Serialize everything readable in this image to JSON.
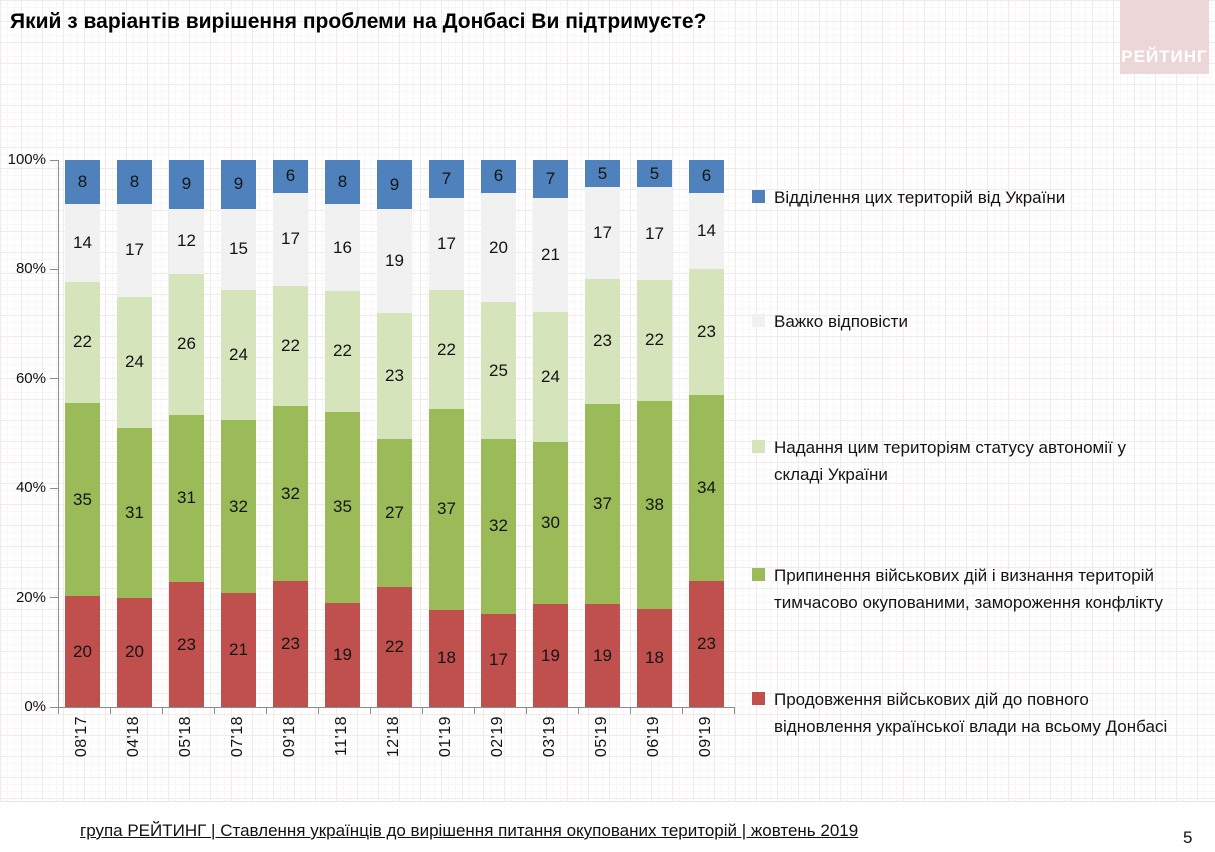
{
  "chart_data": {
    "type": "bar",
    "stacked": true,
    "title": "Який з варіантів вирішення проблеми на Донбасі Ви підтримуєте?",
    "categories": [
      "08'17",
      "04'18",
      "05'18",
      "07'18",
      "09'18",
      "11'18",
      "12'18",
      "01'19",
      "02'19",
      "03'19",
      "05'19",
      "06'19",
      "09'19"
    ],
    "series": [
      {
        "name": "Продовження військових дій до повного відновлення української влади на всьому Донбасі",
        "color": "#c0504d",
        "values": [
          20,
          20,
          23,
          21,
          23,
          19,
          22,
          18,
          17,
          19,
          19,
          18,
          23
        ]
      },
      {
        "name": "Припинення військових дій і визнання територій тимчасово окупованими, замороження конфлікту",
        "color": "#9bbb59",
        "values": [
          35,
          31,
          31,
          32,
          32,
          35,
          27,
          37,
          32,
          30,
          37,
          38,
          34
        ]
      },
      {
        "name": "Надання цим територіям статусу автономії у складі України",
        "color": "#d6e4bc",
        "values": [
          22,
          24,
          26,
          24,
          22,
          22,
          23,
          22,
          25,
          24,
          23,
          22,
          23
        ]
      },
      {
        "name": "Важко відповісти",
        "color": "#f1f1f1",
        "values": [
          14,
          17,
          12,
          15,
          17,
          16,
          19,
          17,
          20,
          21,
          17,
          17,
          14
        ]
      },
      {
        "name": "Відділення цих територій від України",
        "color": "#4f81bd",
        "values": [
          8,
          8,
          9,
          9,
          6,
          8,
          9,
          7,
          6,
          7,
          5,
          5,
          6
        ]
      }
    ],
    "xlabel": "",
    "ylabel": "",
    "ylim": [
      0,
      100
    ],
    "yticks": [
      "0%",
      "20%",
      "40%",
      "60%",
      "80%",
      "100%"
    ],
    "grid": false,
    "legend_position": "right"
  },
  "legend": {
    "items": [
      {
        "series_index": 4,
        "lines": [
          "Відділення цих територій від України"
        ]
      },
      {
        "series_index": 3,
        "lines": [
          "Важко відповісти"
        ]
      },
      {
        "series_index": 2,
        "lines": [
          "Надання цим територіям статусу автономії у",
          "складі України"
        ]
      },
      {
        "series_index": 1,
        "lines": [
          "Припинення військових дій і визнання територій",
          "тимчасово окупованими, замороження конфлікту"
        ]
      },
      {
        "series_index": 0,
        "lines": [
          "Продовження військових дій до повного",
          "відновлення української влади на всьому Донбасі"
        ]
      }
    ]
  },
  "logo": {
    "text": "РЕЙТИНГ",
    "bg": "#ebd7d7",
    "text_color": "#ffffff"
  },
  "footer": {
    "text": "група РЕЙТИНГ | Ставлення українців до вирішення питання окупованих територій  | жовтень  2019",
    "page_number": "5"
  },
  "colors": {
    "axis": "#8c8c8c",
    "value_label": "#141414"
  }
}
